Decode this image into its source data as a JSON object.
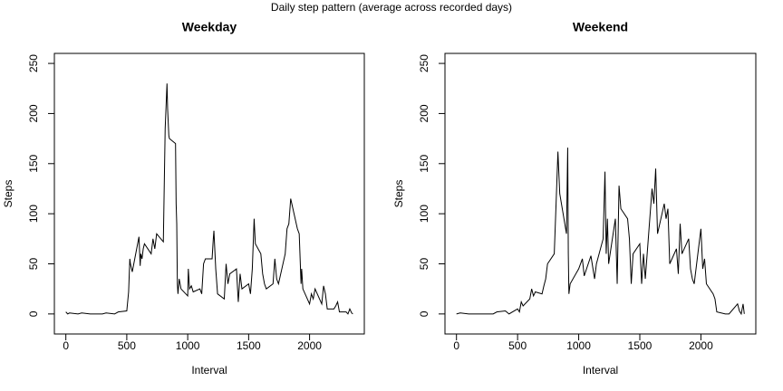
{
  "title": "Daily step pattern (average across recorded days)",
  "chart_data": [
    {
      "type": "line",
      "title": "Weekday",
      "xlabel": "Interval",
      "ylabel": "Steps",
      "color": "#000000",
      "xlim": [
        -94.2,
        2449.2
      ],
      "ylim": [
        -20,
        260
      ],
      "xticks": [
        0,
        500,
        1000,
        1500,
        2000
      ],
      "yticks": [
        0,
        50,
        100,
        150,
        200,
        250
      ],
      "x": [
        0,
        15,
        30,
        100,
        130,
        200,
        230,
        300,
        330,
        400,
        430,
        500,
        515,
        525,
        530,
        545,
        600,
        610,
        615,
        625,
        635,
        645,
        700,
        715,
        730,
        745,
        800,
        815,
        830,
        835,
        845,
        850,
        900,
        905,
        910,
        915,
        920,
        930,
        945,
        1000,
        1005,
        1015,
        1030,
        1045,
        1100,
        1115,
        1130,
        1145,
        1200,
        1210,
        1215,
        1230,
        1245,
        1300,
        1315,
        1330,
        1345,
        1400,
        1415,
        1430,
        1445,
        1500,
        1515,
        1530,
        1545,
        1555,
        1600,
        1615,
        1630,
        1645,
        1700,
        1715,
        1730,
        1745,
        1800,
        1815,
        1830,
        1845,
        1900,
        1915,
        1930,
        1935,
        1945,
        2000,
        2015,
        2030,
        2045,
        2100,
        2115,
        2130,
        2145,
        2200,
        2215,
        2230,
        2245,
        2300,
        2315,
        2330,
        2345,
        2355
      ],
      "values": [
        2,
        0,
        1,
        0,
        1,
        0,
        0,
        0,
        1,
        0,
        2,
        3,
        22,
        55,
        50,
        42,
        77,
        48,
        60,
        55,
        65,
        70,
        60,
        75,
        65,
        80,
        72,
        185,
        230,
        205,
        178,
        175,
        170,
        110,
        90,
        30,
        20,
        35,
        25,
        18,
        45,
        25,
        28,
        22,
        25,
        20,
        50,
        55,
        55,
        75,
        83,
        45,
        20,
        15,
        50,
        30,
        40,
        45,
        12,
        40,
        25,
        30,
        20,
        45,
        95,
        70,
        60,
        40,
        30,
        25,
        30,
        55,
        35,
        30,
        60,
        85,
        90,
        115,
        85,
        80,
        30,
        45,
        25,
        10,
        20,
        15,
        25,
        10,
        28,
        20,
        5,
        5,
        8,
        12,
        2,
        2,
        0,
        5,
        1,
        0
      ]
    },
    {
      "type": "line",
      "title": "Weekend",
      "xlabel": "Interval",
      "ylabel": "Steps",
      "color": "#000000",
      "xlim": [
        -94.2,
        2449.2
      ],
      "ylim": [
        -20,
        260
      ],
      "xticks": [
        0,
        500,
        1000,
        1500,
        2000
      ],
      "yticks": [
        0,
        50,
        100,
        150,
        200,
        250
      ],
      "x": [
        0,
        30,
        100,
        200,
        300,
        330,
        400,
        430,
        500,
        515,
        530,
        545,
        600,
        615,
        630,
        645,
        700,
        715,
        730,
        745,
        800,
        815,
        830,
        845,
        900,
        910,
        915,
        920,
        930,
        1000,
        1030,
        1045,
        1100,
        1130,
        1145,
        1200,
        1215,
        1225,
        1235,
        1245,
        1300,
        1315,
        1330,
        1345,
        1400,
        1415,
        1430,
        1445,
        1500,
        1515,
        1530,
        1545,
        1600,
        1615,
        1630,
        1645,
        1700,
        1715,
        1730,
        1745,
        1800,
        1815,
        1830,
        1845,
        1900,
        1915,
        1930,
        1945,
        2000,
        2015,
        2030,
        2045,
        2100,
        2115,
        2130,
        2200,
        2230,
        2300,
        2315,
        2330,
        2345,
        2355
      ],
      "values": [
        0,
        1,
        0,
        0,
        0,
        2,
        3,
        0,
        5,
        2,
        12,
        8,
        15,
        25,
        18,
        22,
        20,
        28,
        35,
        50,
        60,
        110,
        162,
        120,
        80,
        166,
        60,
        20,
        30,
        45,
        55,
        38,
        58,
        35,
        50,
        75,
        142,
        60,
        95,
        50,
        95,
        30,
        128,
        105,
        95,
        75,
        30,
        60,
        70,
        30,
        60,
        35,
        125,
        110,
        145,
        80,
        110,
        95,
        105,
        50,
        65,
        40,
        90,
        60,
        75,
        45,
        35,
        30,
        85,
        45,
        55,
        30,
        20,
        15,
        2,
        0,
        0,
        10,
        3,
        0,
        10,
        0
      ]
    }
  ]
}
